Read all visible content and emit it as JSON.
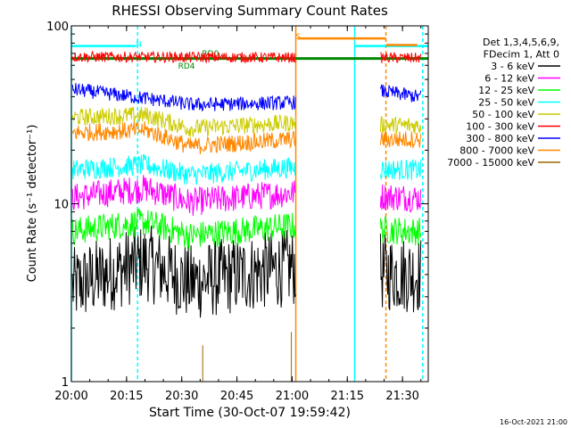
{
  "chart_data": {
    "type": "line",
    "title": "RHESSI Observing Summary Count Rates",
    "xlabel": "Start Time (30-Oct-07 19:59:42)",
    "ylabel": "Count Rate (s⁻¹ detector⁻¹)",
    "yscale": "log",
    "ylim": [
      1,
      100
    ],
    "xlim_minutes": [
      0,
      97
    ],
    "x_ticks": [
      {
        "m": 0,
        "label": "20:00"
      },
      {
        "m": 15,
        "label": "20:15"
      },
      {
        "m": 30,
        "label": "20:30"
      },
      {
        "m": 45,
        "label": "20:45"
      },
      {
        "m": 60,
        "label": "21:00"
      },
      {
        "m": 75,
        "label": "21:15"
      },
      {
        "m": 90,
        "label": "21:30"
      }
    ],
    "y_ticks": [
      {
        "v": 1,
        "label": "1"
      },
      {
        "v": 10,
        "label": "10"
      },
      {
        "v": 100,
        "label": "100"
      }
    ],
    "legend": {
      "position": "right",
      "header": [
        "Det 1,3,4,5,6,9,",
        "FDecim 1, Att 0"
      ]
    },
    "series": [
      {
        "name": "3 - 6 keV",
        "color": "#000000",
        "levels": [
          [
            0,
            3.4
          ],
          [
            20,
            4.7
          ],
          [
            32,
            3.6
          ],
          [
            60,
            4.4
          ],
          [
            94,
            4.0
          ]
        ],
        "gap": [
          61,
          84
        ],
        "jitter": 0.22
      },
      {
        "name": "6 - 12 keV",
        "color": "#ff00ff",
        "levels": [
          [
            0,
            10.8
          ],
          [
            20,
            12.2
          ],
          [
            32,
            10.2
          ],
          [
            60,
            11.5
          ],
          [
            94,
            10.8
          ]
        ],
        "gap": [
          61,
          84
        ],
        "jitter": 0.08
      },
      {
        "name": "12 - 25 keV",
        "color": "#00ff00",
        "levels": [
          [
            0,
            7.0
          ],
          [
            20,
            7.9
          ],
          [
            32,
            6.6
          ],
          [
            60,
            7.5
          ],
          [
            94,
            7.0
          ]
        ],
        "gap": [
          61,
          84
        ],
        "jitter": 0.08
      },
      {
        "name": "25 - 50 keV",
        "color": "#00ffff",
        "levels": [
          [
            0,
            15.5
          ],
          [
            20,
            16.5
          ],
          [
            32,
            14.5
          ],
          [
            60,
            16.0
          ],
          [
            94,
            15.5
          ]
        ],
        "gap": [
          61,
          84
        ],
        "jitter": 0.06
      },
      {
        "name": "50 - 100 keV",
        "color": "#cccc00",
        "levels": [
          [
            0,
            30.5
          ],
          [
            20,
            31.5
          ],
          [
            32,
            26.5
          ],
          [
            60,
            28.5
          ],
          [
            94,
            27.5
          ]
        ],
        "gap": [
          61,
          84
        ],
        "jitter": 0.05
      },
      {
        "name": "100 - 300 keV",
        "color": "#ff0000",
        "levels": [
          [
            0,
            67
          ],
          [
            94,
            66
          ]
        ],
        "gap": [
          61,
          84
        ],
        "jitter": 0.03
      },
      {
        "name": "300 - 800 keV",
        "color": "#0000ff",
        "levels": [
          [
            0,
            44
          ],
          [
            33,
            36
          ],
          [
            60,
            37
          ],
          [
            84,
            43
          ],
          [
            94,
            40
          ]
        ],
        "gap": [
          61,
          84
        ],
        "jitter": 0.04
      },
      {
        "name": "800 - 7000 keV",
        "color": "#ff8800",
        "levels": [
          [
            0,
            25
          ],
          [
            20,
            26
          ],
          [
            32,
            21
          ],
          [
            60,
            23
          ],
          [
            94,
            23
          ]
        ],
        "gap": [
          61,
          84
        ],
        "jitter": 0.05
      },
      {
        "name": "7000 - 15000 keV",
        "color": "#996600",
        "levels": [
          [
            0,
            1
          ]
        ],
        "gap": [
          0,
          97
        ],
        "jitter": 0
      }
    ],
    "annotations": [
      {
        "text": "N",
        "m": 17.5
      },
      {
        "text": "RD0",
        "m": 35.5
      },
      {
        "text": "RD4",
        "m": 29
      },
      {
        "text": "S",
        "m": 61
      }
    ]
  },
  "timestamp": "16-Oct-2021 21:00"
}
